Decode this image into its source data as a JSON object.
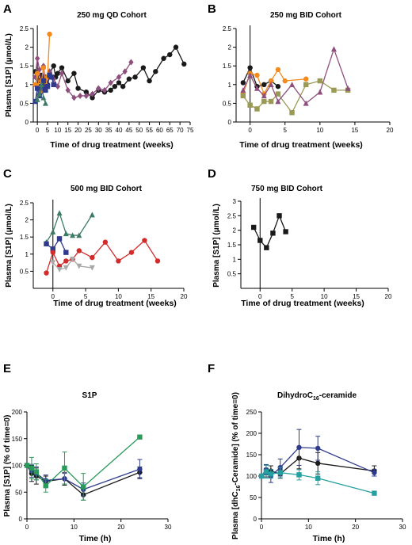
{
  "chart_data": [
    {
      "type": "line",
      "label": "A",
      "title": "250 mg QD Cohort",
      "xlabel": "Time of drug treatment (weeks)",
      "ylabel": "Plasma [S1P] (μmol/L)",
      "xlim": [
        -2,
        75
      ],
      "ylim": [
        0,
        2.5
      ],
      "xticks": [
        0,
        5,
        10,
        15,
        20,
        25,
        30,
        35,
        40,
        45,
        50,
        55,
        60,
        65,
        70,
        75
      ],
      "yticks": [
        0,
        0.5,
        1.0,
        1.5,
        2.0,
        2.5
      ],
      "series": [
        {
          "color": "#1a1a1a",
          "marker": "circle",
          "x": [
            -1,
            0,
            1,
            2,
            3,
            4,
            5,
            6,
            8,
            9,
            10,
            12,
            15,
            18,
            20,
            24,
            27,
            30,
            33,
            36,
            38,
            40,
            42,
            45,
            48,
            52,
            55,
            58,
            62,
            65,
            68,
            72
          ],
          "y": [
            1.35,
            1.3,
            1.1,
            1.25,
            0.9,
            1.2,
            1.0,
            1.3,
            1.5,
            1.2,
            1.3,
            1.45,
            1.1,
            1.3,
            0.9,
            0.8,
            0.65,
            0.85,
            0.8,
            0.85,
            0.95,
            1.05,
            0.95,
            1.15,
            1.2,
            1.45,
            1.1,
            1.35,
            1.7,
            1.8,
            2.0,
            1.55
          ]
        },
        {
          "color": "#8e4f7e",
          "marker": "diamond",
          "x": [
            -1,
            0,
            1,
            2,
            3,
            4,
            6,
            8,
            10,
            12,
            15,
            18,
            21,
            24,
            27,
            30,
            33,
            36,
            40,
            43,
            46
          ],
          "y": [
            1.2,
            1.7,
            1.4,
            0.8,
            1.5,
            1.1,
            1.35,
            1.15,
            0.95,
            1.3,
            0.85,
            0.65,
            0.7,
            0.7,
            0.75,
            0.9,
            0.85,
            1.05,
            1.2,
            1.35,
            1.6
          ]
        },
        {
          "color": "#f28a1e",
          "marker": "circle",
          "x": [
            -1,
            0,
            1,
            2,
            3,
            4,
            5,
            6
          ],
          "y": [
            1.0,
            1.3,
            0.8,
            1.1,
            1.45,
            1.0,
            1.2,
            2.35
          ]
        },
        {
          "color": "#2e3a8c",
          "marker": "square",
          "x": [
            -1,
            0,
            1,
            2,
            3,
            4,
            5,
            6,
            7,
            8
          ],
          "y": [
            0.55,
            0.9,
            0.7,
            0.95,
            1.1,
            0.85,
            0.95,
            1.25,
            1.2,
            1.0
          ]
        },
        {
          "color": "#3e7a66",
          "marker": "triangle",
          "x": [
            0,
            1,
            2,
            3,
            4
          ],
          "y": [
            0.6,
            0.75,
            1.0,
            0.65,
            0.5
          ]
        }
      ]
    },
    {
      "type": "line",
      "label": "B",
      "title": "250 mg  BID Cohort",
      "xlabel": "Time of drug treatment (weeks)",
      "ylabel": "",
      "xlim": [
        -2,
        20
      ],
      "ylim": [
        0,
        2.5
      ],
      "xticks": [
        0,
        5,
        10,
        15,
        20
      ],
      "yticks": [
        0,
        0.5,
        1.0,
        1.5,
        2.0,
        2.5
      ],
      "series": [
        {
          "color": "#1a1a1a",
          "marker": "circle",
          "x": [
            -1,
            0,
            1,
            2,
            3,
            4
          ],
          "y": [
            1.05,
            1.45,
            0.95,
            1.0,
            1.1,
            0.95
          ]
        },
        {
          "color": "#f28a1e",
          "marker": "circle",
          "x": [
            -1,
            0,
            1,
            2,
            3,
            4,
            5,
            8
          ],
          "y": [
            0.75,
            1.3,
            1.25,
            0.75,
            1.1,
            1.4,
            1.1,
            1.15
          ]
        },
        {
          "color": "#9a9a55",
          "marker": "square",
          "x": [
            -1,
            0,
            1,
            2,
            3,
            4,
            6,
            8,
            10,
            12,
            14
          ],
          "y": [
            0.7,
            0.45,
            0.35,
            0.55,
            0.55,
            0.75,
            0.25,
            1.0,
            1.1,
            0.85,
            0.85
          ]
        },
        {
          "color": "#8e4f7e",
          "marker": "triangle",
          "x": [
            -1,
            0,
            1,
            2,
            3,
            4,
            6,
            8,
            10,
            12,
            14
          ],
          "y": [
            0.85,
            1.25,
            0.9,
            0.7,
            1.0,
            0.55,
            1.0,
            0.5,
            0.8,
            1.95,
            0.9
          ]
        }
      ]
    },
    {
      "type": "line",
      "label": "C",
      "title": "500 mg BID Cohort",
      "xlabel": "Time of drug treatment (weeks)",
      "ylabel": "Plasma [S1P] (μmol/L)",
      "xlim": [
        -3,
        20
      ],
      "ylim": [
        0,
        2.5
      ],
      "xticks": [
        0,
        5,
        10,
        15,
        20
      ],
      "yticks": [
        0.5,
        1.0,
        1.5,
        2.0,
        2.5
      ],
      "series": [
        {
          "color": "#3e7a66",
          "marker": "triangle",
          "x": [
            -1,
            0,
            1,
            2,
            3,
            4,
            6
          ],
          "y": [
            1.35,
            1.65,
            2.2,
            1.6,
            1.55,
            1.55,
            2.15
          ]
        },
        {
          "color": "#2e3a8c",
          "marker": "square",
          "x": [
            -1,
            0,
            1,
            2
          ],
          "y": [
            1.3,
            1.15,
            1.45,
            1.05
          ]
        },
        {
          "color": "#d22b2b",
          "marker": "circle",
          "x": [
            -1,
            0,
            1,
            2,
            3,
            4,
            6,
            8,
            10,
            12,
            14,
            16
          ],
          "y": [
            0.45,
            1.05,
            0.65,
            0.8,
            0.85,
            1.1,
            0.9,
            1.35,
            0.8,
            1.05,
            1.4,
            0.8
          ]
        },
        {
          "color": "#a8a8a8",
          "marker": "triangle-down",
          "x": [
            0,
            1,
            2,
            3,
            4,
            6
          ],
          "y": [
            0.75,
            0.55,
            0.6,
            0.85,
            0.65,
            0.6
          ]
        }
      ]
    },
    {
      "type": "line",
      "label": "D",
      "title": "750 mg BID Cohort",
      "xlabel": "Time of drug treatment (weeks)",
      "ylabel": "Plasma [S1P] (μmol/L)",
      "xlim": [
        -3,
        20
      ],
      "ylim": [
        0,
        3.0
      ],
      "xticks": [
        0,
        5,
        10,
        15,
        20
      ],
      "yticks": [
        0.5,
        1.0,
        1.5,
        2.0,
        2.5,
        3.0
      ],
      "series": [
        {
          "color": "#1a1a1a",
          "marker": "square",
          "x": [
            -1,
            0,
            1,
            2,
            3,
            4
          ],
          "y": [
            2.1,
            1.65,
            1.4,
            1.9,
            2.5,
            1.95
          ]
        }
      ]
    },
    {
      "type": "line",
      "label": "E",
      "title": "S1P",
      "xlabel": "Time (h)",
      "ylabel": "Plasma [S1P] (% of time=0)",
      "xlim": [
        0,
        30
      ],
      "ylim": [
        0,
        200
      ],
      "xticks": [
        0,
        10,
        20,
        30
      ],
      "yticks": [
        0,
        50,
        100,
        150,
        200
      ],
      "series": [
        {
          "color": "#1a1a1a",
          "marker": "circle",
          "x": [
            0,
            1,
            2,
            4,
            8,
            12,
            24
          ],
          "y": [
            100,
            85,
            80,
            70,
            75,
            45,
            87
          ],
          "err": [
            0,
            15,
            15,
            10,
            12,
            10,
            10
          ]
        },
        {
          "color": "#2e3a8c",
          "marker": "circle",
          "x": [
            0,
            1,
            2,
            4,
            8,
            12,
            24
          ],
          "y": [
            100,
            90,
            85,
            72,
            75,
            55,
            93
          ],
          "err": [
            0,
            12,
            12,
            10,
            10,
            12,
            18
          ]
        },
        {
          "color": "#2a9a5a",
          "marker": "square",
          "x": [
            0,
            1,
            2,
            4,
            8,
            12,
            24
          ],
          "y": [
            100,
            95,
            88,
            62,
            95,
            60,
            153
          ],
          "err": [
            0,
            20,
            15,
            12,
            30,
            25,
            0
          ]
        }
      ]
    },
    {
      "type": "line",
      "label": "F",
      "title": "DihydroC16-ceramide",
      "xlabel": "Time (h)",
      "ylabel": "Plasma [dhC16-Ceramide] (% of time=0)",
      "xlim": [
        0,
        30
      ],
      "ylim": [
        0,
        250
      ],
      "xticks": [
        0,
        10,
        20,
        30
      ],
      "yticks": [
        0,
        50,
        100,
        150,
        200,
        250
      ],
      "series": [
        {
          "color": "#1a1a1a",
          "marker": "circle",
          "x": [
            0,
            1,
            2,
            4,
            8,
            12,
            24
          ],
          "y": [
            100,
            108,
            112,
            105,
            142,
            130,
            112
          ],
          "err": [
            0,
            10,
            12,
            10,
            25,
            25,
            12
          ]
        },
        {
          "color": "#2e3a8c",
          "marker": "circle",
          "x": [
            0,
            1,
            2,
            4,
            8,
            12,
            24
          ],
          "y": [
            100,
            115,
            100,
            120,
            167,
            165,
            108
          ],
          "err": [
            0,
            12,
            15,
            20,
            42,
            28,
            8
          ]
        },
        {
          "color": "#25a0a0",
          "marker": "square",
          "x": [
            0,
            1,
            2,
            4,
            8,
            12,
            24
          ],
          "y": [
            100,
            110,
            105,
            108,
            103,
            95,
            60
          ],
          "err": [
            0,
            15,
            10,
            12,
            12,
            15,
            0
          ]
        }
      ]
    }
  ]
}
